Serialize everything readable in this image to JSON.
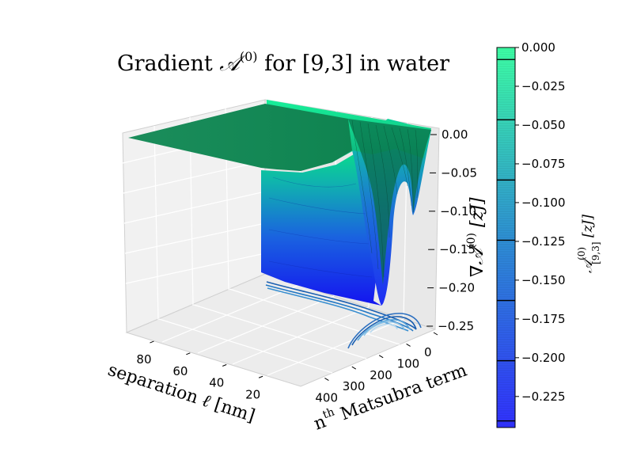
{
  "chart_data": {
    "type": "surface3d",
    "title": "Gradient 𝒜(0) for [9,3] in water",
    "title_parts": {
      "pre": "Gradient ",
      "sym": "𝒜",
      "sup": "(0)",
      "post": " for [9,3] in water"
    },
    "xlabel": "separation ℓ [nm]",
    "xlabel_parts": {
      "text": "separation",
      "sym": "ℓ",
      "unit": "[nm]"
    },
    "ylabel": "nth Matsubra term",
    "ylabel_parts": {
      "pre": "n",
      "sup": "th",
      "post": " Matsubra term"
    },
    "zlabel": "∇𝒜(0) [zJ]",
    "zlabel_parts": {
      "sym": "∇𝒜",
      "sup": "(0)",
      "unit": "[zJ]"
    },
    "x_ticks": [
      "80",
      "60",
      "40",
      "20"
    ],
    "y_ticks": [
      "0",
      "100",
      "200",
      "300",
      "400"
    ],
    "z_ticks": [
      "0.00",
      "-0.05",
      "-0.10",
      "-0.15",
      "-0.20",
      "-0.25"
    ],
    "xlim": [
      0,
      95
    ],
    "ylim": [
      0,
      500
    ],
    "zlim": [
      -0.25,
      0.0
    ],
    "grid": true,
    "colormap": "winter",
    "colorbar": {
      "label": "𝒜(0)[9,3] [zJ]",
      "label_parts": {
        "sym": "𝒜",
        "sup": "(0)",
        "sub": "[9,3]",
        "unit": "[zJ]"
      },
      "ticks": [
        "0.000",
        "-0.025",
        "-0.050",
        "-0.075",
        "-0.100",
        "-0.125",
        "-0.150",
        "-0.175",
        "-0.200",
        "-0.225"
      ],
      "range": [
        -0.245,
        0.0
      ],
      "color_low": "#0000ff",
      "color_high": "#00ff80"
    },
    "surface": {
      "description_values": "gradient near 0 for large separation; sharp dip to about -0.245 at small separation and low Matsubara term",
      "min_value": -0.245,
      "max_value": 0.0
    }
  }
}
